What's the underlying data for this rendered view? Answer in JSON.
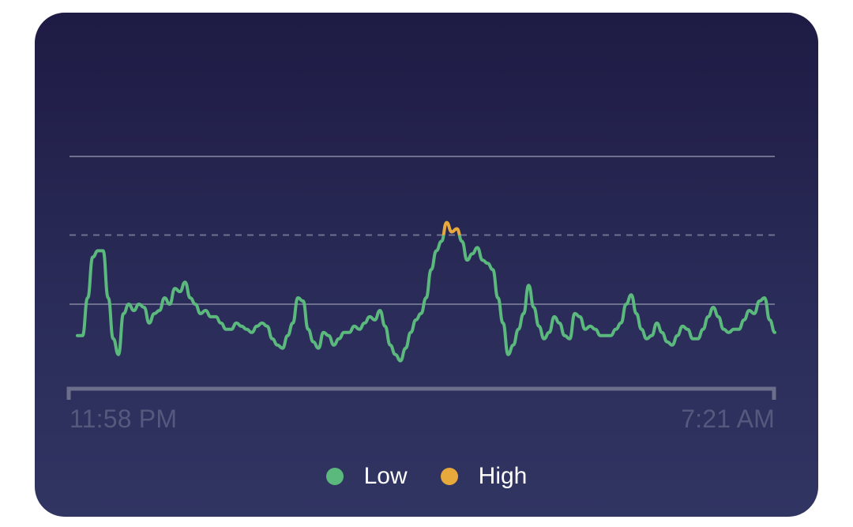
{
  "colors": {
    "low": "#5bb97e",
    "high": "#e7a93c",
    "grid_solid": "#6f7090",
    "grid_dashed": "#6f7090",
    "axis": "#6c6f8c"
  },
  "chart_data": {
    "type": "line",
    "title": "",
    "xlabel": "",
    "ylabel": "",
    "x_range_labels": [
      "11:58 PM",
      "7:21 AM"
    ],
    "ylim": [
      0,
      100
    ],
    "reference_lines": [
      {
        "value": 75,
        "style": "solid"
      },
      {
        "value": 50,
        "style": "dashed"
      },
      {
        "value": 28,
        "style": "solid"
      }
    ],
    "threshold_high": 50,
    "legend_position": "bottom",
    "series": [
      {
        "name": "Low",
        "color": "#5bb97e"
      },
      {
        "name": "High",
        "color": "#e7a93c"
      }
    ],
    "values": [
      18,
      18,
      30,
      43,
      45,
      45,
      30,
      17,
      12,
      25,
      28,
      26,
      28,
      27,
      22,
      25,
      26,
      30,
      28,
      33,
      32,
      35,
      30,
      28,
      25,
      26,
      24,
      24,
      22,
      20,
      20,
      22,
      21,
      20,
      19,
      21,
      22,
      21,
      17,
      15,
      14,
      18,
      22,
      30,
      29,
      20,
      16,
      14,
      19,
      18,
      15,
      17,
      19,
      19,
      21,
      20,
      22,
      24,
      23,
      26,
      21,
      15,
      12,
      10,
      14,
      19,
      23,
      25,
      30,
      39,
      45,
      48,
      54,
      51,
      52,
      48,
      42,
      44,
      46,
      42,
      41,
      39,
      30,
      22,
      12,
      15,
      20,
      25,
      34,
      27,
      21,
      17,
      19,
      24,
      22,
      18,
      17,
      25,
      24,
      20,
      21,
      20,
      18,
      18,
      18,
      20,
      22,
      28,
      31,
      25,
      20,
      17,
      18,
      22,
      19,
      16,
      15,
      18,
      21,
      20,
      17,
      17,
      20,
      24,
      27,
      24,
      20,
      19,
      20,
      20,
      23,
      26,
      25,
      29,
      30,
      23,
      19
    ]
  },
  "time_axis": {
    "start": "11:58 PM",
    "end": "7:21 AM"
  },
  "legend": [
    {
      "label": "Low",
      "color_key": "low"
    },
    {
      "label": "High",
      "color_key": "high"
    }
  ]
}
